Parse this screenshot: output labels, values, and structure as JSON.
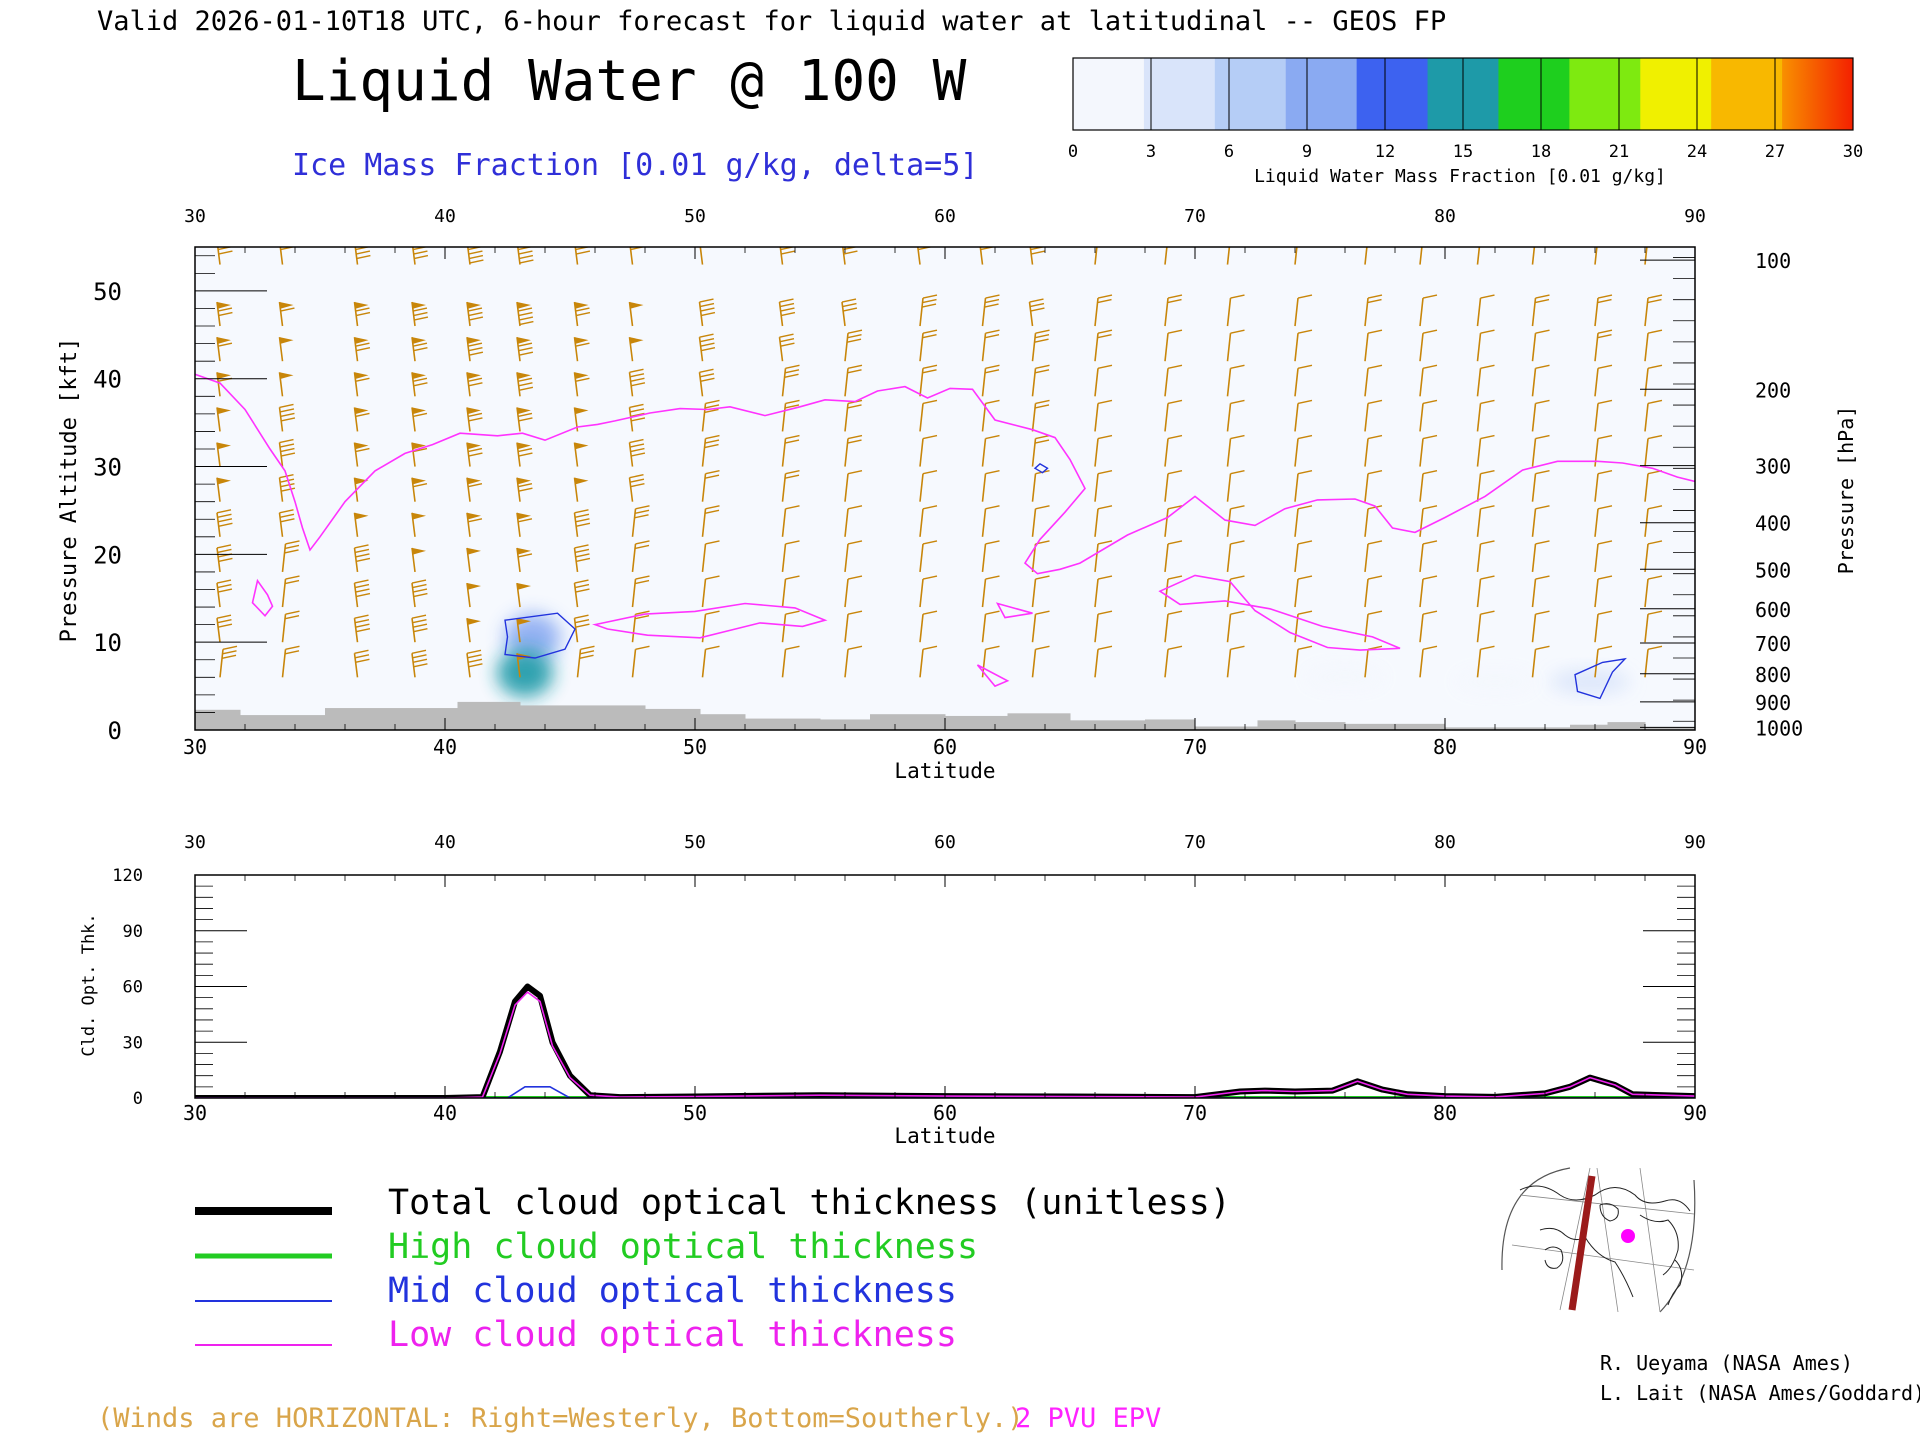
{
  "header": {
    "valid_line": "Valid 2026-01-10T18 UTC, 6-hour forecast for liquid water at latitudinal -- GEOS FP",
    "title": "Liquid Water @ 100 W",
    "subtitle": "Ice Mass Fraction [0.01 g/kg, delta=5]"
  },
  "colorbar": {
    "label": "Liquid Water Mass Fraction [0.01 g/kg]",
    "ticks": [
      "0",
      "3",
      "6",
      "9",
      "12",
      "15",
      "18",
      "21",
      "24",
      "27",
      "30"
    ],
    "colors": [
      "#f4f7fd",
      "#d9e4fa",
      "#b5cdf6",
      "#8aaaf2",
      "#3d62f0",
      "#1e9aa8",
      "#1ecf1e",
      "#7eea10",
      "#f0f000",
      "#f8b800",
      "#f87a00"
    ]
  },
  "colors": {
    "epv_contour": "#ff33ff",
    "ice_contour": "#2233dd",
    "wind_barbs": "#c8860a",
    "terrain": "#bbbbbb",
    "total_line": "#000000",
    "high_line": "#22cc22",
    "mid_line": "#2233dd",
    "low_line": "#ee22ee"
  },
  "credits": [
    "R. Ueyama (NASA Ames)",
    "L. Lait (NASA Ames/Goddard)"
  ],
  "legend_items": [
    {
      "label": "Total cloud optical thickness (unitless)",
      "color": "#000000"
    },
    {
      "label": "High cloud optical thickness",
      "color": "#22cc22"
    },
    {
      "label": "Mid cloud optical thickness",
      "color": "#2233dd"
    },
    {
      "label": "Low cloud optical thickness",
      "color": "#ee22ee"
    }
  ],
  "footer": {
    "winds_note": "(Winds are HORIZONTAL: Right=Westerly, Bottom=Southerly.)",
    "epv_label": "2 PVU EPV"
  },
  "map_inset": {
    "icon": "north-polar-map-icon"
  },
  "chart_data": [
    {
      "type": "heatmap",
      "title": "Liquid Water @ 100 W",
      "xlabel": "Latitude",
      "ylabel": "Pressure Altitude [kft]",
      "y2label": "Pressure [hPa]",
      "xlim": [
        30,
        90
      ],
      "ylim": [
        0,
        55
      ],
      "x_ticks": [
        "30",
        "40",
        "50",
        "60",
        "70",
        "80",
        "90"
      ],
      "y_ticks": [
        "0",
        "10",
        "20",
        "30",
        "40",
        "50"
      ],
      "pressure_ticks": [
        {
          "label": "100",
          "kft": 53.5
        },
        {
          "label": "200",
          "kft": 38.8
        },
        {
          "label": "300",
          "kft": 30.1
        },
        {
          "label": "400",
          "kft": 23.6
        },
        {
          "label": "500",
          "kft": 18.3
        },
        {
          "label": "600",
          "kft": 13.8
        },
        {
          "label": "700",
          "kft": 9.9
        },
        {
          "label": "800",
          "kft": 6.4
        },
        {
          "label": "900",
          "kft": 3.2
        },
        {
          "label": "1000",
          "kft": 0.3
        }
      ],
      "epv_2pvu_contour": [
        [
          30,
          40.5
        ],
        [
          31,
          39.5
        ],
        [
          32,
          36.5
        ],
        [
          33,
          32
        ],
        [
          33.6,
          29.5
        ],
        [
          34,
          26
        ],
        [
          34.3,
          23
        ],
        [
          34.6,
          20.5
        ],
        [
          35,
          22
        ],
        [
          36,
          26
        ],
        [
          37.2,
          29.5
        ],
        [
          38.4,
          31.5
        ],
        [
          39.5,
          32.5
        ],
        [
          40.6,
          33.8
        ],
        [
          42.1,
          33.5
        ],
        [
          43.1,
          33.8
        ],
        [
          44,
          33
        ],
        [
          45.3,
          34.5
        ],
        [
          46.1,
          34.8
        ],
        [
          46.8,
          35.2
        ],
        [
          48.2,
          36.1
        ],
        [
          49.4,
          36.6
        ],
        [
          50.5,
          36.5
        ],
        [
          51.4,
          36.8
        ],
        [
          52.8,
          35.8
        ],
        [
          54.2,
          36.8
        ],
        [
          55.2,
          37.6
        ],
        [
          56.4,
          37.4
        ],
        [
          57.3,
          38.6
        ],
        [
          58.4,
          39.1
        ],
        [
          59.3,
          37.8
        ],
        [
          60.2,
          38.9
        ],
        [
          61.1,
          38.8
        ],
        [
          62,
          35.3
        ],
        [
          63.5,
          34.2
        ],
        [
          64.4,
          33.3
        ],
        [
          65,
          30.8
        ],
        [
          65.6,
          27.5
        ],
        [
          64.8,
          24.8
        ],
        [
          63.8,
          21.7
        ],
        [
          63.2,
          19
        ],
        [
          63.7,
          17.8
        ],
        [
          64.6,
          18.3
        ],
        [
          65.4,
          19
        ],
        [
          67.3,
          22.2
        ],
        [
          68.9,
          24.2
        ],
        [
          70,
          26.6
        ],
        [
          71.2,
          23.9
        ],
        [
          72.4,
          23.3
        ],
        [
          73.6,
          25.2
        ],
        [
          74.9,
          26.2
        ],
        [
          76.4,
          26.3
        ],
        [
          77.2,
          25.5
        ],
        [
          77.9,
          23
        ],
        [
          78.8,
          22.5
        ],
        [
          80,
          24.2
        ],
        [
          81.6,
          26.6
        ],
        [
          83.1,
          29.6
        ],
        [
          84.5,
          30.6
        ],
        [
          86.1,
          30.6
        ],
        [
          87.1,
          30.4
        ],
        [
          88.3,
          29.8
        ],
        [
          89.3,
          28.8
        ],
        [
          90,
          28.3
        ]
      ],
      "epv_2pvu_closed_contours": [
        [
          [
            46,
            12
          ],
          [
            48,
            13.2
          ],
          [
            50,
            13.5
          ],
          [
            52,
            14.4
          ],
          [
            54,
            13.9
          ],
          [
            55.2,
            12.5
          ],
          [
            54.3,
            11.8
          ],
          [
            52.6,
            12.2
          ],
          [
            50.2,
            10.5
          ],
          [
            48.1,
            10.8
          ],
          [
            46.5,
            11.5
          ],
          [
            46,
            12
          ]
        ],
        [
          [
            68.6,
            15.8
          ],
          [
            70,
            17.6
          ],
          [
            71.4,
            16.9
          ],
          [
            72.4,
            13.6
          ],
          [
            73.8,
            11.1
          ],
          [
            75.3,
            9.4
          ],
          [
            76.6,
            9.1
          ],
          [
            78.2,
            9.3
          ],
          [
            77.1,
            10.6
          ],
          [
            75.1,
            11.8
          ],
          [
            73,
            13.8
          ],
          [
            71.2,
            14.7
          ],
          [
            69.4,
            14.3
          ],
          [
            68.6,
            15.8
          ]
        ],
        [
          [
            32.5,
            17
          ],
          [
            32.9,
            15.4
          ],
          [
            33.1,
            14.1
          ],
          [
            32.8,
            13
          ],
          [
            32.3,
            14.5
          ],
          [
            32.5,
            17
          ]
        ],
        [
          [
            62.1,
            14.4
          ],
          [
            63.5,
            13.3
          ],
          [
            62.4,
            12.8
          ],
          [
            62.1,
            14.4
          ]
        ],
        [
          [
            61.3,
            7.4
          ],
          [
            62.5,
            5.6
          ],
          [
            62,
            5
          ],
          [
            61.3,
            7.4
          ]
        ]
      ],
      "ice_contours": [
        [
          [
            42.4,
            12.5
          ],
          [
            44.5,
            13.3
          ],
          [
            45.2,
            11.5
          ],
          [
            44.8,
            9.2
          ],
          [
            43.6,
            8.2
          ],
          [
            42.4,
            8.6
          ],
          [
            42.5,
            10.6
          ],
          [
            42.4,
            12.5
          ]
        ],
        [
          [
            85.2,
            6.3
          ],
          [
            86.3,
            7.7
          ],
          [
            87.2,
            8.1
          ],
          [
            86.7,
            6.6
          ],
          [
            86.2,
            3.6
          ],
          [
            85.3,
            4.4
          ],
          [
            85.2,
            6.3
          ]
        ],
        [
          [
            63.8,
            30.3
          ],
          [
            64.1,
            29.8
          ],
          [
            63.9,
            29.3
          ],
          [
            63.6,
            29.8
          ],
          [
            63.8,
            30.3
          ]
        ]
      ],
      "liquid_water_blobs": [
        {
          "lat": 43.5,
          "kft": 10.5,
          "value": 10
        },
        {
          "lat": 43.2,
          "kft": 6.5,
          "value": 15
        },
        {
          "lat": 85.8,
          "kft": 5.5,
          "value": 3
        },
        {
          "lat": 76,
          "kft": 6,
          "value": 2
        },
        {
          "lat": 82,
          "kft": 5.5,
          "value": 2
        }
      ],
      "terrain_kft": [
        [
          30,
          2.3
        ],
        [
          31.8,
          1.7
        ],
        [
          35.2,
          2.5
        ],
        [
          40.5,
          3.2
        ],
        [
          43,
          2.8
        ],
        [
          48,
          2.4
        ],
        [
          50.2,
          1.8
        ],
        [
          52,
          1.3
        ],
        [
          55,
          1.2
        ],
        [
          57,
          1.8
        ],
        [
          60,
          1.6
        ],
        [
          62.5,
          1.9
        ],
        [
          65,
          1.1
        ],
        [
          68,
          1.2
        ],
        [
          70,
          0.4
        ],
        [
          72.5,
          1.1
        ],
        [
          74,
          0.9
        ],
        [
          76,
          0.7
        ],
        [
          80,
          0.3
        ],
        [
          85,
          0.6
        ],
        [
          86.5,
          0.9
        ],
        [
          88,
          0.3
        ],
        [
          90,
          0.1
        ]
      ],
      "wind_barb_grid": {
        "latitudes": [
          31,
          33.5,
          36.5,
          38.8,
          41,
          43,
          45.3,
          47.5,
          50.3,
          53.5,
          56,
          59,
          61.5,
          63.5,
          66,
          68.8,
          71.3,
          74,
          76.8,
          79,
          81.3,
          83.5,
          86,
          88
        ],
        "levels_kft": [
          53,
          46,
          42,
          38,
          34,
          30,
          26,
          22,
          18,
          14,
          10,
          6
        ],
        "speed_kt": [
          70,
          60,
          75,
          80,
          85,
          90,
          70,
          55,
          45,
          40,
          35,
          30,
          30,
          35,
          25,
          20,
          15,
          15,
          20,
          15,
          15,
          20,
          25,
          20
        ]
      }
    },
    {
      "type": "line",
      "xlabel": "Latitude",
      "ylabel": "Cld. Opt. Thk.",
      "xlim": [
        30,
        90
      ],
      "ylim": [
        0,
        120
      ],
      "x_ticks": [
        "30",
        "40",
        "50",
        "60",
        "70",
        "80",
        "90"
      ],
      "y_ticks": [
        "0",
        "30",
        "60",
        "90",
        "120"
      ],
      "series": [
        {
          "name": "Total cloud optical thickness (unitless)",
          "x": [
            30,
            40,
            41.5,
            42.2,
            42.8,
            43.3,
            43.8,
            44.3,
            45,
            45.8,
            47,
            50,
            55,
            60,
            65,
            70,
            71.8,
            72.8,
            74,
            75.5,
            76.5,
            77.5,
            78.5,
            80,
            82,
            84,
            85,
            85.8,
            86.8,
            87.5,
            90
          ],
          "y": [
            0,
            0,
            0.5,
            25,
            52,
            60,
            55,
            30,
            12,
            1.5,
            0.5,
            0.8,
            1.5,
            1,
            0.8,
            0.5,
            3.5,
            4,
            3.5,
            4,
            9,
            4.5,
            2,
            1,
            0.6,
            2.5,
            6,
            11,
            7,
            2,
            1
          ]
        },
        {
          "name": "High cloud optical thickness",
          "x": [
            30,
            90
          ],
          "y": [
            0,
            0
          ]
        },
        {
          "name": "Mid cloud optical thickness",
          "x": [
            30,
            42.5,
            43.2,
            44.2,
            45,
            50,
            90
          ],
          "y": [
            0,
            0,
            6,
            6,
            0,
            0,
            0
          ]
        },
        {
          "name": "Low cloud optical thickness",
          "x": [
            30,
            40,
            41.5,
            42.2,
            42.8,
            43.3,
            43.8,
            44.3,
            45,
            45.8,
            47,
            50,
            55,
            60,
            65,
            70,
            71.8,
            72.8,
            74,
            75.5,
            76.5,
            77.5,
            78.5,
            80,
            82,
            84,
            85,
            85.8,
            86.8,
            87.5,
            90
          ],
          "y": [
            0,
            0,
            0.5,
            24,
            50,
            57,
            52,
            28,
            11,
            1.5,
            0.5,
            0.8,
            1.5,
            1,
            0.8,
            0.5,
            3.5,
            4,
            3.5,
            4,
            9,
            4.5,
            2,
            1,
            0.6,
            2.5,
            6,
            11,
            7,
            2,
            1
          ]
        }
      ]
    }
  ]
}
